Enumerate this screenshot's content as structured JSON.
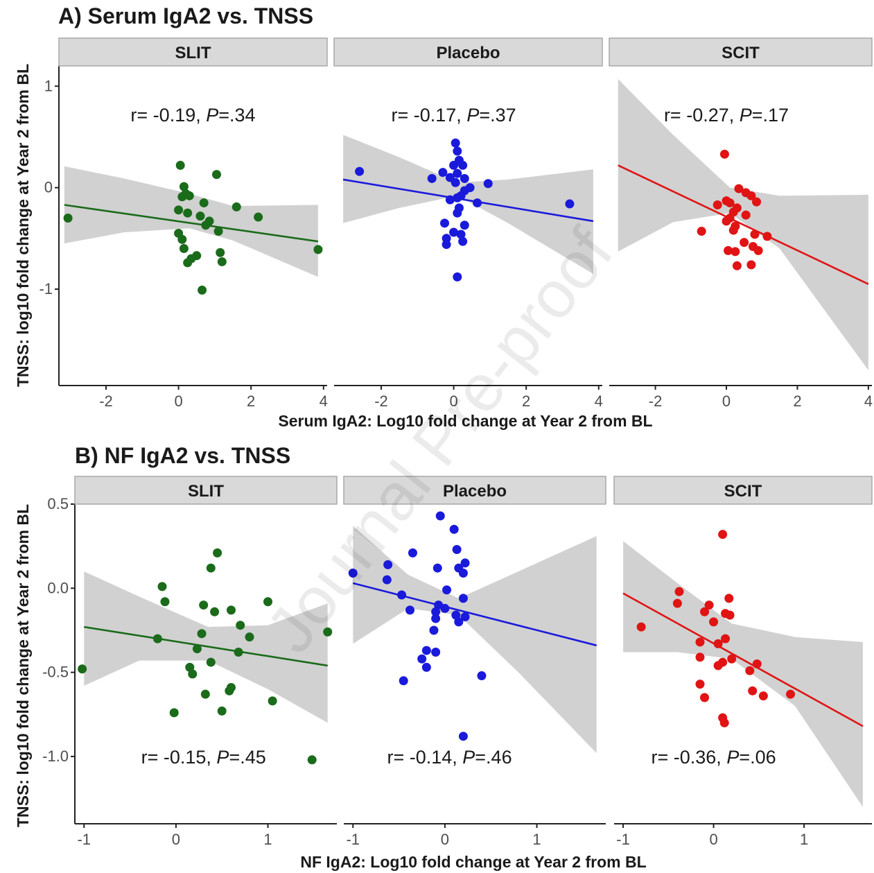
{
  "watermark": "Journal Pre-proof",
  "chart_data": [
    {
      "type": "scatter",
      "title": "A) Serum IgA2 vs. TNSS",
      "xlabel": "Serum IgA2: Log10 fold change at Year 2 from BL",
      "ylabel": "TNSS: log10 fold change at Year 2 from BL",
      "xlim": [
        -3.3,
        4.1
      ],
      "ylim": [
        -1.95,
        1.2
      ],
      "xticks": [
        -2,
        0,
        2,
        4
      ],
      "xtick_labels": [
        "-2",
        "0",
        "2",
        "4"
      ],
      "yticks": [
        1,
        0,
        -1
      ],
      "ytick_labels": [
        "1",
        "0",
        "-1"
      ],
      "facets": [
        {
          "name": "SLIT",
          "color": "#1a6b1a",
          "stat_prefix": "r= -0.19, ",
          "stat_p": "P",
          "stat_suffix": "=.34",
          "stat_pos": {
            "x": 0.4,
            "y": 0.72
          },
          "fit": {
            "x1": -3.15,
            "y1": -0.17,
            "x2": 3.85,
            "y2": -0.53
          },
          "band": [
            [
              -3.15,
              0.21,
              -0.55
            ],
            [
              -1.5,
              0.09,
              -0.44
            ],
            [
              0.3,
              -0.06,
              -0.4
            ],
            [
              1.5,
              -0.18,
              -0.52
            ],
            [
              3.85,
              -0.17,
              -0.88
            ]
          ],
          "points": [
            [
              -3.05,
              -0.3
            ],
            [
              0.05,
              0.22
            ],
            [
              0.15,
              0.01
            ],
            [
              0.2,
              -0.06
            ],
            [
              0.1,
              -0.09
            ],
            [
              0.3,
              -0.08
            ],
            [
              0.0,
              -0.22
            ],
            [
              0.25,
              -0.25
            ],
            [
              0.7,
              -0.15
            ],
            [
              1.05,
              0.13
            ],
            [
              1.6,
              -0.19
            ],
            [
              2.2,
              -0.29
            ],
            [
              0.6,
              -0.28
            ],
            [
              0.85,
              -0.33
            ],
            [
              0.75,
              -0.37
            ],
            [
              1.1,
              -0.43
            ],
            [
              0.0,
              -0.45
            ],
            [
              0.1,
              -0.51
            ],
            [
              0.15,
              -0.6
            ],
            [
              0.5,
              -0.67
            ],
            [
              0.35,
              -0.7
            ],
            [
              0.25,
              -0.74
            ],
            [
              1.15,
              -0.64
            ],
            [
              1.2,
              -0.73
            ],
            [
              0.65,
              -1.01
            ],
            [
              3.85,
              -0.61
            ]
          ]
        },
        {
          "name": "Placebo",
          "color": "#1a1adb",
          "stat_prefix": "r= -0.17, ",
          "stat_p": "P",
          "stat_suffix": "=.37",
          "stat_pos": {
            "x": 0.0,
            "y": 0.72
          },
          "fit": {
            "x1": -3.05,
            "y1": 0.08,
            "x2": 3.85,
            "y2": -0.33
          },
          "band": [
            [
              -3.05,
              0.52,
              -0.35
            ],
            [
              -1.5,
              0.3,
              -0.2
            ],
            [
              0.1,
              0.05,
              -0.08
            ],
            [
              1.5,
              0.08,
              -0.35
            ],
            [
              3.85,
              0.18,
              -0.85
            ]
          ],
          "points": [
            [
              -2.6,
              0.16
            ],
            [
              0.05,
              0.44
            ],
            [
              0.1,
              0.36
            ],
            [
              0.15,
              0.27
            ],
            [
              0.0,
              0.22
            ],
            [
              0.25,
              0.22
            ],
            [
              -0.3,
              0.15
            ],
            [
              0.1,
              0.14
            ],
            [
              -0.1,
              0.1
            ],
            [
              -0.6,
              0.09
            ],
            [
              0.3,
              0.09
            ],
            [
              0.05,
              0.05
            ],
            [
              0.95,
              0.04
            ],
            [
              0.45,
              0.0
            ],
            [
              0.3,
              -0.03
            ],
            [
              0.2,
              -0.08
            ],
            [
              0.1,
              -0.1
            ],
            [
              -0.1,
              -0.12
            ],
            [
              0.65,
              -0.15
            ],
            [
              0.15,
              -0.2
            ],
            [
              3.2,
              -0.16
            ],
            [
              0.1,
              -0.25
            ],
            [
              -0.25,
              -0.35
            ],
            [
              0.3,
              -0.37
            ],
            [
              0.0,
              -0.44
            ],
            [
              0.2,
              -0.46
            ],
            [
              -0.2,
              -0.5
            ],
            [
              0.25,
              -0.53
            ],
            [
              -0.2,
              -0.56
            ],
            [
              0.1,
              -0.88
            ]
          ]
        },
        {
          "name": "SCIT",
          "color": "#e01414",
          "stat_prefix": "r= -0.27, ",
          "stat_p": "P",
          "stat_suffix": "=.17",
          "stat_pos": {
            "x": 0.0,
            "y": 0.72
          },
          "fit": {
            "x1": -3.05,
            "y1": 0.22,
            "x2": 4.0,
            "y2": -0.95
          },
          "band": [
            [
              -3.05,
              1.07,
              -0.63
            ],
            [
              -1.5,
              0.52,
              -0.34
            ],
            [
              0.1,
              0.0,
              -0.25
            ],
            [
              1.5,
              -0.08,
              -0.6
            ],
            [
              4.0,
              -0.07,
              -1.8
            ]
          ],
          "points": [
            [
              -0.05,
              0.33
            ],
            [
              0.35,
              -0.01
            ],
            [
              0.55,
              -0.05
            ],
            [
              0.7,
              -0.08
            ],
            [
              0.0,
              -0.13
            ],
            [
              0.1,
              -0.15
            ],
            [
              0.85,
              -0.14
            ],
            [
              -0.25,
              -0.17
            ],
            [
              0.3,
              -0.2
            ],
            [
              0.2,
              -0.24
            ],
            [
              0.55,
              -0.27
            ],
            [
              0.1,
              -0.3
            ],
            [
              0.0,
              -0.33
            ],
            [
              0.25,
              -0.38
            ],
            [
              -0.7,
              -0.43
            ],
            [
              0.2,
              -0.42
            ],
            [
              0.8,
              -0.46
            ],
            [
              1.15,
              -0.48
            ],
            [
              0.5,
              -0.54
            ],
            [
              0.75,
              -0.58
            ],
            [
              0.05,
              -0.62
            ],
            [
              0.25,
              -0.63
            ],
            [
              0.9,
              -0.62
            ],
            [
              0.3,
              -0.77
            ],
            [
              0.7,
              -0.76
            ]
          ]
        }
      ]
    },
    {
      "type": "scatter",
      "title": "B) NF IgA2 vs. TNSS",
      "xlabel": "NF IgA2: Log10 fold change at Year 2 from BL",
      "ylabel": "TNSS: log10 fold change at Year 2 from BL",
      "xlim": [
        -1.1,
        1.75
      ],
      "ylim": [
        -1.4,
        0.5
      ],
      "xticks": [
        -1,
        0,
        1
      ],
      "xtick_labels": [
        "-1",
        "0",
        "1"
      ],
      "yticks": [
        0.5,
        0.0,
        -0.5,
        -1.0
      ],
      "ytick_labels": [
        "0.5",
        "0.0",
        "-0.5",
        "-1.0"
      ],
      "facets": [
        {
          "name": "SLIT",
          "color": "#1a6b1a",
          "stat_prefix": "r= -0.15, ",
          "stat_p": "P",
          "stat_suffix": "=.45",
          "stat_pos": {
            "x": 0.3,
            "y": -1.0
          },
          "fit": {
            "x1": -1.0,
            "y1": -0.23,
            "x2": 1.65,
            "y2": -0.46
          },
          "band": [
            [
              -1.0,
              0.1,
              -0.58
            ],
            [
              -0.4,
              -0.05,
              -0.43
            ],
            [
              0.35,
              -0.23,
              -0.43
            ],
            [
              1.0,
              -0.22,
              -0.6
            ],
            [
              1.65,
              -0.09,
              -0.8
            ]
          ],
          "points": [
            [
              -1.02,
              -0.48
            ],
            [
              -0.15,
              0.01
            ],
            [
              -0.12,
              -0.08
            ],
            [
              -0.2,
              -0.3
            ],
            [
              0.45,
              0.21
            ],
            [
              0.38,
              0.12
            ],
            [
              0.3,
              -0.1
            ],
            [
              0.42,
              -0.14
            ],
            [
              0.6,
              -0.13
            ],
            [
              1.0,
              -0.08
            ],
            [
              1.65,
              -0.26
            ],
            [
              0.7,
              -0.22
            ],
            [
              0.8,
              -0.29
            ],
            [
              0.28,
              -0.27
            ],
            [
              0.23,
              -0.36
            ],
            [
              0.38,
              -0.44
            ],
            [
              0.68,
              -0.38
            ],
            [
              0.15,
              -0.47
            ],
            [
              0.18,
              -0.51
            ],
            [
              0.6,
              -0.59
            ],
            [
              0.58,
              -0.61
            ],
            [
              0.32,
              -0.63
            ],
            [
              1.05,
              -0.67
            ],
            [
              0.5,
              -0.73
            ],
            [
              -0.02,
              -0.74
            ],
            [
              1.48,
              -1.02
            ]
          ]
        },
        {
          "name": "Placebo",
          "color": "#1a1adb",
          "stat_prefix": "r= -0.14, ",
          "stat_p": "P",
          "stat_suffix": "=.46",
          "stat_pos": {
            "x": 0.05,
            "y": -1.0
          },
          "fit": {
            "x1": -1.0,
            "y1": 0.03,
            "x2": 1.65,
            "y2": -0.34
          },
          "band": [
            [
              -1.0,
              0.37,
              -0.33
            ],
            [
              -0.4,
              0.08,
              -0.12
            ],
            [
              0.15,
              -0.06,
              -0.16
            ],
            [
              0.8,
              0.1,
              -0.5
            ],
            [
              1.65,
              0.31,
              -0.98
            ]
          ],
          "points": [
            [
              -0.05,
              0.43
            ],
            [
              0.1,
              0.35
            ],
            [
              -0.35,
              0.21
            ],
            [
              0.13,
              0.23
            ],
            [
              0.22,
              0.15
            ],
            [
              0.15,
              0.12
            ],
            [
              -0.62,
              0.14
            ],
            [
              -0.08,
              0.12
            ],
            [
              -1.0,
              0.09
            ],
            [
              0.2,
              0.09
            ],
            [
              -0.63,
              0.05
            ],
            [
              0.02,
              -0.01
            ],
            [
              -0.47,
              -0.04
            ],
            [
              0.2,
              -0.06
            ],
            [
              -0.07,
              -0.1
            ],
            [
              -0.38,
              -0.13
            ],
            [
              0.0,
              -0.12
            ],
            [
              -0.1,
              -0.14
            ],
            [
              0.12,
              -0.16
            ],
            [
              0.22,
              -0.17
            ],
            [
              -0.1,
              -0.18
            ],
            [
              0.15,
              -0.2
            ],
            [
              -0.12,
              -0.25
            ],
            [
              -0.2,
              -0.37
            ],
            [
              -0.1,
              -0.38
            ],
            [
              -0.25,
              -0.42
            ],
            [
              -0.2,
              -0.47
            ],
            [
              0.4,
              -0.52
            ],
            [
              -0.45,
              -0.55
            ],
            [
              0.2,
              -0.88
            ]
          ]
        },
        {
          "name": "SCIT",
          "color": "#e01414",
          "stat_prefix": "r= -0.36, ",
          "stat_p": "P",
          "stat_suffix": "=.06",
          "stat_pos": {
            "x": 0.0,
            "y": -1.0
          },
          "fit": {
            "x1": -1.0,
            "y1": -0.03,
            "x2": 1.65,
            "y2": -0.82
          },
          "band": [
            [
              -1.0,
              0.28,
              -0.38
            ],
            [
              -0.4,
              0.03,
              -0.38
            ],
            [
              0.2,
              -0.21,
              -0.42
            ],
            [
              0.9,
              -0.29,
              -0.7
            ],
            [
              1.65,
              -0.32,
              -1.3
            ]
          ],
          "points": [
            [
              0.1,
              0.32
            ],
            [
              -0.38,
              -0.02
            ],
            [
              -0.05,
              -0.1
            ],
            [
              0.17,
              -0.06
            ],
            [
              -0.1,
              -0.14
            ],
            [
              0.13,
              -0.15
            ],
            [
              0.18,
              -0.16
            ],
            [
              -0.4,
              -0.09
            ],
            [
              -0.8,
              -0.23
            ],
            [
              0.0,
              -0.2
            ],
            [
              0.13,
              -0.3
            ],
            [
              -0.15,
              -0.32
            ],
            [
              0.05,
              -0.33
            ],
            [
              0.2,
              -0.42
            ],
            [
              -0.15,
              -0.41
            ],
            [
              0.1,
              -0.44
            ],
            [
              0.05,
              -0.46
            ],
            [
              0.48,
              -0.45
            ],
            [
              0.4,
              -0.49
            ],
            [
              -0.15,
              -0.57
            ],
            [
              0.43,
              -0.61
            ],
            [
              0.55,
              -0.64
            ],
            [
              0.85,
              -0.63
            ],
            [
              -0.1,
              -0.65
            ],
            [
              0.1,
              -0.77
            ],
            [
              0.12,
              -0.8
            ]
          ]
        }
      ]
    }
  ]
}
